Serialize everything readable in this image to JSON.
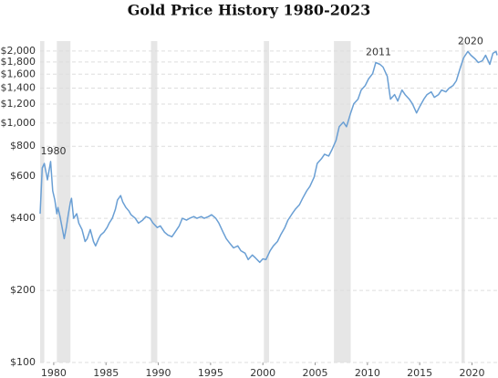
{
  "chart_data": {
    "type": "line",
    "title": "Gold Price History 1980-2023",
    "log_scale": true,
    "grid": true,
    "color": "#6a9fd4",
    "band_color": "#e6e6e6",
    "xlim": [
      1978.7,
      2022.4
    ],
    "xticks": [
      1980,
      1985,
      1990,
      1995,
      2000,
      2005,
      2010,
      2015,
      2020
    ],
    "ylim": [
      100,
      2200
    ],
    "yticks": [
      {
        "value": 100,
        "label": "$100"
      },
      {
        "value": 200,
        "label": "$200"
      },
      {
        "value": 400,
        "label": "$400"
      },
      {
        "value": 600,
        "label": "$600"
      },
      {
        "value": 800,
        "label": "$800"
      },
      {
        "value": 1000,
        "label": "$1,000"
      },
      {
        "value": 1200,
        "label": "$1,200"
      },
      {
        "value": 1400,
        "label": "$1,400"
      },
      {
        "value": 1600,
        "label": "$1,600"
      },
      {
        "value": 1800,
        "label": "$1,800"
      },
      {
        "value": 2000,
        "label": "$2,000"
      }
    ],
    "shaded_ranges": [
      [
        1978.7,
        1979.1
      ],
      [
        1980.3,
        1981.6
      ],
      [
        1989.3,
        1989.9
      ],
      [
        2000.1,
        2000.6
      ],
      [
        2006.8,
        2008.4
      ],
      [
        2019.0,
        2019.3
      ]
    ],
    "annotations": [
      {
        "text": "1980",
        "x": 1979.7,
        "y": 691
      },
      {
        "text": "2011",
        "x": 2010.8,
        "y": 1790
      },
      {
        "text": "2020",
        "x": 2019.6,
        "y": 1990
      }
    ],
    "x": [
      1978.7,
      1978.9,
      1979.1,
      1979.4,
      1979.7,
      1979.9,
      1980.1,
      1980.3,
      1980.4,
      1980.6,
      1980.8,
      1981.0,
      1981.2,
      1981.4,
      1981.6,
      1981.7,
      1981.9,
      1982.2,
      1982.4,
      1982.7,
      1983.0,
      1983.2,
      1983.5,
      1983.8,
      1984.0,
      1984.3,
      1984.5,
      1984.8,
      1985.1,
      1985.3,
      1985.6,
      1985.9,
      1986.1,
      1986.4,
      1986.6,
      1986.9,
      1987.2,
      1987.4,
      1987.8,
      1988.1,
      1988.5,
      1988.8,
      1989.2,
      1989.5,
      1989.9,
      1990.2,
      1990.6,
      1990.9,
      1991.3,
      1991.6,
      1992.0,
      1992.3,
      1992.7,
      1993.0,
      1993.4,
      1993.7,
      1994.1,
      1994.4,
      1994.8,
      1995.1,
      1995.5,
      1995.8,
      1996.2,
      1996.5,
      1996.9,
      1997.2,
      1997.6,
      1997.9,
      1998.3,
      1998.6,
      1999.0,
      1999.3,
      1999.7,
      2000.0,
      2000.3,
      2000.7,
      2001.0,
      2001.4,
      2001.7,
      2002.1,
      2002.4,
      2002.8,
      2003.1,
      2003.5,
      2003.8,
      2004.2,
      2004.5,
      2004.9,
      2005.2,
      2005.6,
      2005.9,
      2006.3,
      2006.6,
      2007.0,
      2007.3,
      2007.7,
      2008.0,
      2008.4,
      2008.7,
      2009.1,
      2009.4,
      2009.8,
      2010.1,
      2010.5,
      2010.8,
      2011.2,
      2011.5,
      2011.9,
      2012.2,
      2012.6,
      2012.9,
      2013.3,
      2013.6,
      2014.0,
      2014.3,
      2014.7,
      2015.0,
      2015.4,
      2015.7,
      2016.1,
      2016.4,
      2016.8,
      2017.1,
      2017.5,
      2017.8,
      2018.2,
      2018.5,
      2018.9,
      2019.2,
      2019.6,
      2019.9,
      2020.3,
      2020.6,
      2021.0,
      2021.3,
      2021.7,
      2022.0,
      2022.3,
      2022.4
    ],
    "values": [
      418,
      649,
      678,
      579,
      691,
      521,
      477,
      418,
      444,
      407,
      366,
      329,
      366,
      418,
      468,
      485,
      400,
      418,
      382,
      359,
      320,
      329,
      359,
      320,
      307,
      329,
      341,
      350,
      366,
      382,
      400,
      436,
      477,
      498,
      468,
      444,
      429,
      414,
      400,
      382,
      393,
      407,
      400,
      382,
      366,
      372,
      350,
      341,
      335,
      350,
      372,
      400,
      393,
      400,
      407,
      400,
      407,
      400,
      407,
      414,
      400,
      382,
      350,
      329,
      312,
      301,
      307,
      293,
      286,
      269,
      281,
      273,
      262,
      271,
      269,
      293,
      307,
      320,
      341,
      366,
      393,
      418,
      436,
      456,
      485,
      521,
      544,
      594,
      678,
      709,
      741,
      728,
      774,
      846,
      965,
      1009,
      965,
      1102,
      1204,
      1258,
      1374,
      1436,
      1528,
      1610,
      1790,
      1758,
      1713,
      1568,
      1258,
      1315,
      1236,
      1374,
      1315,
      1258,
      1204,
      1102,
      1172,
      1258,
      1315,
      1350,
      1281,
      1315,
      1374,
      1350,
      1398,
      1436,
      1501,
      1713,
      1871,
      1990,
      1920,
      1854,
      1790,
      1822,
      1920,
      1758,
      1955,
      1990,
      1920
    ]
  }
}
